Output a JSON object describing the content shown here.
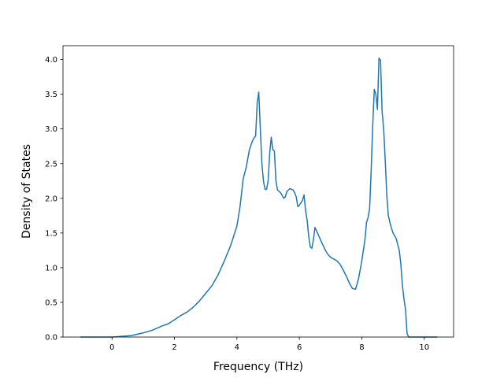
{
  "chart_data": {
    "type": "line",
    "title": "",
    "xlabel": "Frequency (THz)",
    "ylabel": "Density of States",
    "xlim": [
      -1.57,
      10.94
    ],
    "ylim": [
      0.0,
      4.2
    ],
    "xticks": [
      0,
      2,
      4,
      6,
      8,
      10
    ],
    "yticks": [
      0.0,
      0.5,
      1.0,
      1.5,
      2.0,
      2.5,
      3.0,
      3.5,
      4.0
    ],
    "xtick_labels": [
      "0",
      "2",
      "4",
      "6",
      "8",
      "10"
    ],
    "ytick_labels": [
      "0.0",
      "0.5",
      "1.0",
      "1.5",
      "2.0",
      "2.5",
      "3.0",
      "3.5",
      "4.0"
    ],
    "grid": false,
    "series": [
      {
        "color": "#1f77b4",
        "x": [
          -1.0,
          -0.5,
          0.0,
          0.3,
          0.6,
          0.8,
          1.0,
          1.3,
          1.6,
          1.8,
          2.0,
          2.2,
          2.4,
          2.6,
          2.8,
          3.0,
          3.2,
          3.4,
          3.6,
          3.8,
          3.9,
          4.0,
          4.05,
          4.1,
          4.2,
          4.3,
          4.4,
          4.5,
          4.55,
          4.6,
          4.65,
          4.7,
          4.75,
          4.8,
          4.85,
          4.9,
          4.95,
          5.0,
          5.05,
          5.1,
          5.15,
          5.2,
          5.25,
          5.3,
          5.4,
          5.5,
          5.55,
          5.6,
          5.7,
          5.8,
          5.85,
          5.9,
          5.95,
          6.0,
          6.1,
          6.15,
          6.2,
          6.25,
          6.3,
          6.35,
          6.4,
          6.45,
          6.5,
          6.6,
          6.7,
          6.8,
          6.9,
          7.0,
          7.2,
          7.3,
          7.4,
          7.5,
          7.6,
          7.7,
          7.8,
          7.9,
          8.0,
          8.1,
          8.15,
          8.2,
          8.25,
          8.3,
          8.35,
          8.4,
          8.45,
          8.5,
          8.55,
          8.6,
          8.65,
          8.7,
          8.75,
          8.8,
          8.85,
          8.9,
          8.95,
          9.0,
          9.1,
          9.2,
          9.25,
          9.3,
          9.35,
          9.4,
          9.45,
          9.5,
          9.6,
          10.0,
          10.4
        ],
        "y": [
          0.0,
          0.0,
          0.0,
          0.01,
          0.02,
          0.04,
          0.06,
          0.1,
          0.16,
          0.19,
          0.25,
          0.31,
          0.36,
          0.43,
          0.52,
          0.63,
          0.74,
          0.9,
          1.1,
          1.32,
          1.46,
          1.6,
          1.74,
          1.88,
          2.28,
          2.45,
          2.7,
          2.83,
          2.87,
          2.9,
          3.38,
          3.53,
          3.0,
          2.5,
          2.25,
          2.13,
          2.13,
          2.25,
          2.65,
          2.88,
          2.7,
          2.68,
          2.25,
          2.12,
          2.08,
          2.0,
          2.02,
          2.1,
          2.14,
          2.12,
          2.08,
          2.02,
          1.88,
          1.9,
          1.97,
          2.05,
          1.82,
          1.68,
          1.45,
          1.3,
          1.28,
          1.4,
          1.58,
          1.48,
          1.38,
          1.28,
          1.2,
          1.15,
          1.1,
          1.05,
          0.97,
          0.88,
          0.78,
          0.7,
          0.69,
          0.85,
          1.1,
          1.4,
          1.65,
          1.72,
          1.85,
          2.4,
          3.05,
          3.57,
          3.5,
          3.28,
          4.02,
          3.99,
          3.25,
          3.0,
          2.55,
          2.05,
          1.75,
          1.65,
          1.57,
          1.5,
          1.42,
          1.25,
          1.05,
          0.75,
          0.55,
          0.4,
          0.05,
          0.0,
          0.0,
          0.0,
          0.0
        ]
      }
    ]
  }
}
